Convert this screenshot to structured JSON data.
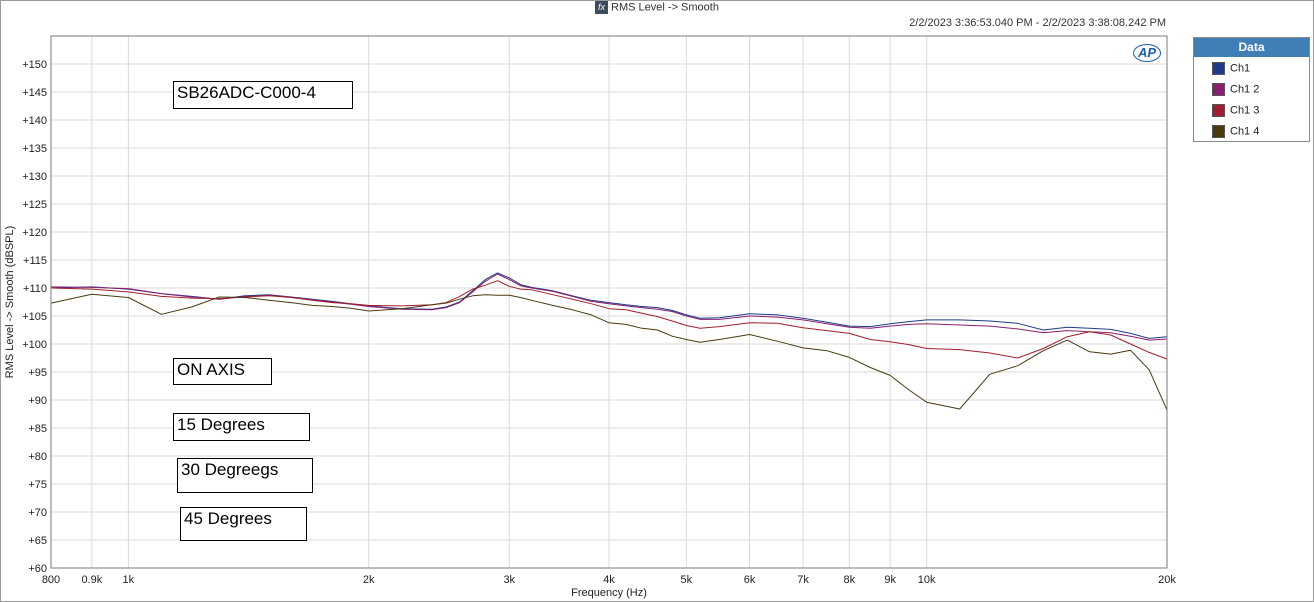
{
  "header": {
    "title": "RMS Level -> Smooth",
    "fx_label": "fx",
    "timestamp": "2/2/2023 3:36:53.040 PM - 2/2/2023 3:38:08.242 PM",
    "logo_text": "AP"
  },
  "legend": {
    "title": "Data",
    "placement": "top-right outside"
  },
  "annotations": {
    "model": "SB26ADC-C000-4",
    "on_axis": "ON AXIS",
    "deg15": "15 Degrees",
    "deg30": "30 Degreegs",
    "deg45": "45 Degrees"
  },
  "chart_data": {
    "type": "line",
    "title": "RMS Level -> Smooth",
    "xlabel": "Frequency (Hz)",
    "ylabel": "RMS Level -> Smooth (dBSPL)",
    "xscale": "log",
    "xlim": [
      800,
      20000
    ],
    "ylim": [
      60,
      155
    ],
    "grid": true,
    "x_ticks": [
      {
        "value": 800,
        "label": "800"
      },
      {
        "value": 900,
        "label": "0.9k"
      },
      {
        "value": 1000,
        "label": "1k"
      },
      {
        "value": 2000,
        "label": "2k"
      },
      {
        "value": 3000,
        "label": "3k"
      },
      {
        "value": 4000,
        "label": "4k"
      },
      {
        "value": 5000,
        "label": "5k"
      },
      {
        "value": 6000,
        "label": "6k"
      },
      {
        "value": 7000,
        "label": "7k"
      },
      {
        "value": 8000,
        "label": "8k"
      },
      {
        "value": 9000,
        "label": "9k"
      },
      {
        "value": 10000,
        "label": "10k"
      },
      {
        "value": 20000,
        "label": "20k"
      }
    ],
    "y_ticks": [
      {
        "value": 60,
        "label": "+60"
      },
      {
        "value": 65,
        "label": "+65"
      },
      {
        "value": 70,
        "label": "+70"
      },
      {
        "value": 75,
        "label": "+75"
      },
      {
        "value": 80,
        "label": "+80"
      },
      {
        "value": 85,
        "label": "+85"
      },
      {
        "value": 90,
        "label": "+90"
      },
      {
        "value": 95,
        "label": "+95"
      },
      {
        "value": 100,
        "label": "+100"
      },
      {
        "value": 105,
        "label": "+105"
      },
      {
        "value": 110,
        "label": "+110"
      },
      {
        "value": 115,
        "label": "+115"
      },
      {
        "value": 120,
        "label": "+120"
      },
      {
        "value": 125,
        "label": "+125"
      },
      {
        "value": 130,
        "label": "+130"
      },
      {
        "value": 135,
        "label": "+135"
      },
      {
        "value": 140,
        "label": "+140"
      },
      {
        "value": 145,
        "label": "+145"
      },
      {
        "value": 150,
        "label": "+150"
      }
    ],
    "series": [
      {
        "name": "Ch1",
        "color": "#1f3a8a",
        "points": [
          [
            800,
            110
          ],
          [
            900,
            110.2
          ],
          [
            1000,
            109.8
          ],
          [
            1100,
            109
          ],
          [
            1200,
            108.5
          ],
          [
            1300,
            108
          ],
          [
            1400,
            108.6
          ],
          [
            1500,
            108.8
          ],
          [
            1600,
            108.4
          ],
          [
            1700,
            108
          ],
          [
            1800,
            107.6
          ],
          [
            1900,
            107.2
          ],
          [
            2000,
            106.8
          ],
          [
            2200,
            106.3
          ],
          [
            2400,
            106.2
          ],
          [
            2500,
            106.6
          ],
          [
            2600,
            107.5
          ],
          [
            2700,
            109.5
          ],
          [
            2800,
            111.5
          ],
          [
            2900,
            112.7
          ],
          [
            3000,
            111.8
          ],
          [
            3100,
            110.6
          ],
          [
            3200,
            110.1
          ],
          [
            3400,
            109.5
          ],
          [
            3600,
            108.6
          ],
          [
            3800,
            107.8
          ],
          [
            4000,
            107.4
          ],
          [
            4200,
            107
          ],
          [
            4400,
            106.7
          ],
          [
            4600,
            106.5
          ],
          [
            4800,
            106
          ],
          [
            5000,
            105.2
          ],
          [
            5200,
            104.6
          ],
          [
            5500,
            104.7
          ],
          [
            6000,
            105.4
          ],
          [
            6500,
            105.2
          ],
          [
            7000,
            104.6
          ],
          [
            7500,
            103.9
          ],
          [
            8000,
            103.2
          ],
          [
            8500,
            103.1
          ],
          [
            9000,
            103.6
          ],
          [
            9500,
            104
          ],
          [
            10000,
            104.3
          ],
          [
            11000,
            104.3
          ],
          [
            12000,
            104.1
          ],
          [
            13000,
            103.7
          ],
          [
            14000,
            102.5
          ],
          [
            15000,
            103
          ],
          [
            16000,
            102.8
          ],
          [
            17000,
            102.6
          ],
          [
            18000,
            101.9
          ],
          [
            19000,
            101
          ],
          [
            20000,
            101.3
          ]
        ]
      },
      {
        "name": "Ch1 2",
        "color": "#8a1f6e",
        "points": [
          [
            800,
            110.2
          ],
          [
            900,
            110.1
          ],
          [
            1000,
            109.9
          ],
          [
            1100,
            109
          ],
          [
            1200,
            108.4
          ],
          [
            1300,
            108
          ],
          [
            1400,
            108.5
          ],
          [
            1500,
            108.7
          ],
          [
            1600,
            108.3
          ],
          [
            1700,
            107.9
          ],
          [
            1800,
            107.5
          ],
          [
            1900,
            107.1
          ],
          [
            2000,
            106.7
          ],
          [
            2200,
            106.2
          ],
          [
            2400,
            106.1
          ],
          [
            2500,
            106.5
          ],
          [
            2600,
            107.4
          ],
          [
            2700,
            109.3
          ],
          [
            2800,
            111.2
          ],
          [
            2900,
            112.5
          ],
          [
            3000,
            111.5
          ],
          [
            3100,
            110.4
          ],
          [
            3200,
            110
          ],
          [
            3400,
            109.4
          ],
          [
            3600,
            108.5
          ],
          [
            3800,
            107.6
          ],
          [
            4000,
            107.2
          ],
          [
            4200,
            106.8
          ],
          [
            4400,
            106.5
          ],
          [
            4600,
            106.2
          ],
          [
            4800,
            105.8
          ],
          [
            5000,
            105
          ],
          [
            5200,
            104.4
          ],
          [
            5500,
            104.4
          ],
          [
            6000,
            105
          ],
          [
            6500,
            104.8
          ],
          [
            7000,
            104.3
          ],
          [
            7500,
            103.6
          ],
          [
            8000,
            103
          ],
          [
            8500,
            102.8
          ],
          [
            9000,
            103.2
          ],
          [
            9500,
            103.5
          ],
          [
            10000,
            103.6
          ],
          [
            11000,
            103.4
          ],
          [
            12000,
            103.2
          ],
          [
            13000,
            102.7
          ],
          [
            14000,
            102
          ],
          [
            15000,
            102.4
          ],
          [
            16000,
            102.2
          ],
          [
            17000,
            102
          ],
          [
            18000,
            101.4
          ],
          [
            19000,
            100.7
          ],
          [
            20000,
            100.9
          ]
        ]
      },
      {
        "name": "Ch1 3",
        "color": "#a01f2e",
        "points": [
          [
            800,
            110
          ],
          [
            900,
            109.8
          ],
          [
            1000,
            109.3
          ],
          [
            1100,
            108.5
          ],
          [
            1200,
            108.2
          ],
          [
            1300,
            108.1
          ],
          [
            1400,
            108.4
          ],
          [
            1500,
            108.6
          ],
          [
            1600,
            108.3
          ],
          [
            1700,
            107.8
          ],
          [
            1800,
            107.4
          ],
          [
            1900,
            107.2
          ],
          [
            2000,
            106.9
          ],
          [
            2200,
            106.8
          ],
          [
            2400,
            107
          ],
          [
            2500,
            107.4
          ],
          [
            2600,
            108.5
          ],
          [
            2700,
            109.8
          ],
          [
            2800,
            110.5
          ],
          [
            2900,
            111.3
          ],
          [
            3000,
            110.3
          ],
          [
            3100,
            109.8
          ],
          [
            3200,
            109.7
          ],
          [
            3400,
            108.8
          ],
          [
            3600,
            108
          ],
          [
            3800,
            107.2
          ],
          [
            4000,
            106.3
          ],
          [
            4200,
            106.1
          ],
          [
            4400,
            105.5
          ],
          [
            4600,
            104.9
          ],
          [
            4800,
            104.1
          ],
          [
            5000,
            103.3
          ],
          [
            5200,
            102.8
          ],
          [
            5500,
            103.1
          ],
          [
            6000,
            103.8
          ],
          [
            6500,
            103.7
          ],
          [
            7000,
            102.9
          ],
          [
            7500,
            102.4
          ],
          [
            8000,
            101.9
          ],
          [
            8500,
            100.8
          ],
          [
            9000,
            100.4
          ],
          [
            9500,
            99.9
          ],
          [
            10000,
            99.2
          ],
          [
            11000,
            99
          ],
          [
            12000,
            98.4
          ],
          [
            13000,
            97.5
          ],
          [
            14000,
            99.2
          ],
          [
            15000,
            101.3
          ],
          [
            16000,
            102.2
          ],
          [
            17000,
            101.6
          ],
          [
            18000,
            100
          ],
          [
            19000,
            98.5
          ],
          [
            20000,
            97.3
          ]
        ]
      },
      {
        "name": "Ch1 4",
        "color": "#4a3a10",
        "points": [
          [
            800,
            107.3
          ],
          [
            900,
            108.9
          ],
          [
            1000,
            108.3
          ],
          [
            1100,
            105.3
          ],
          [
            1200,
            106.6
          ],
          [
            1300,
            108.4
          ],
          [
            1400,
            108.3
          ],
          [
            1500,
            107.8
          ],
          [
            1600,
            107.4
          ],
          [
            1700,
            106.9
          ],
          [
            1800,
            106.7
          ],
          [
            1900,
            106.4
          ],
          [
            2000,
            105.9
          ],
          [
            2200,
            106.3
          ],
          [
            2400,
            107
          ],
          [
            2500,
            107.3
          ],
          [
            2600,
            108
          ],
          [
            2700,
            108.6
          ],
          [
            2800,
            108.8
          ],
          [
            2900,
            108.7
          ],
          [
            3000,
            108.7
          ],
          [
            3100,
            108.3
          ],
          [
            3200,
            107.8
          ],
          [
            3400,
            106.9
          ],
          [
            3600,
            106.1
          ],
          [
            3800,
            105.2
          ],
          [
            4000,
            103.8
          ],
          [
            4200,
            103.5
          ],
          [
            4400,
            102.8
          ],
          [
            4600,
            102.5
          ],
          [
            4800,
            101.4
          ],
          [
            5000,
            100.8
          ],
          [
            5200,
            100.3
          ],
          [
            5500,
            100.8
          ],
          [
            6000,
            101.7
          ],
          [
            6500,
            100.5
          ],
          [
            7000,
            99.3
          ],
          [
            7500,
            98.8
          ],
          [
            8000,
            97.6
          ],
          [
            8500,
            95.8
          ],
          [
            9000,
            94.4
          ],
          [
            9500,
            91.8
          ],
          [
            10000,
            89.6
          ],
          [
            11000,
            88.4
          ],
          [
            12000,
            94.6
          ],
          [
            13000,
            96.1
          ],
          [
            14000,
            98.8
          ],
          [
            15000,
            100.7
          ],
          [
            16000,
            98.6
          ],
          [
            17000,
            98.2
          ],
          [
            18000,
            98.9
          ],
          [
            19000,
            95.4
          ],
          [
            20000,
            88.2
          ]
        ]
      }
    ]
  }
}
